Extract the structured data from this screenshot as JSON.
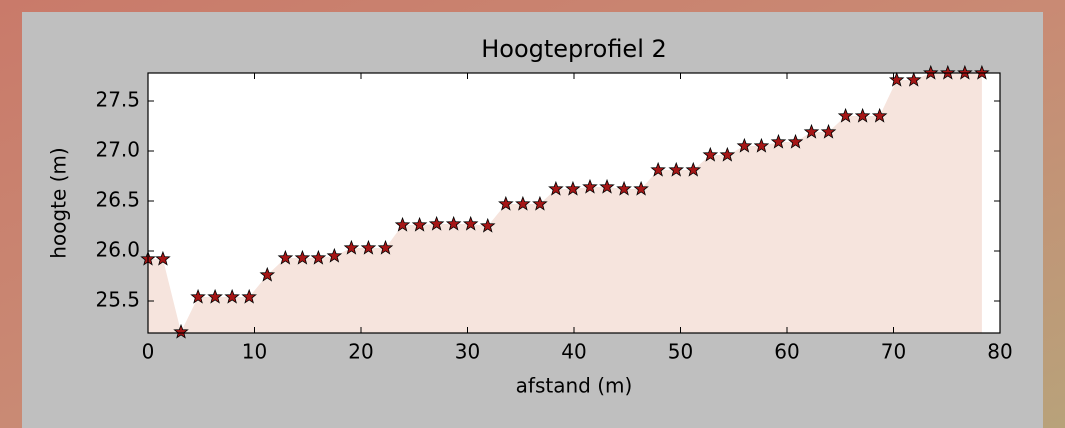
{
  "chart_data": {
    "type": "scatter",
    "title": "Hoogteprofiel 2",
    "x_label": "afstand (m)",
    "y_label": "hoogte (m)",
    "marker": "star",
    "color": "#a51616",
    "fill_color": "#f6e4dd",
    "x": [
      0,
      1.4,
      3.1,
      4.7,
      6.3,
      7.9,
      9.5,
      11.2,
      12.9,
      14.5,
      16.0,
      17.5,
      19.1,
      20.7,
      22.3,
      23.9,
      25.5,
      27.1,
      28.7,
      30.3,
      31.9,
      33.6,
      35.2,
      36.8,
      38.3,
      39.9,
      41.5,
      43.1,
      44.7,
      46.3,
      47.9,
      49.6,
      51.2,
      52.8,
      54.4,
      56.0,
      57.6,
      59.2,
      60.8,
      62.3,
      63.9,
      65.5,
      67.1,
      68.7,
      70.3,
      71.9,
      73.5,
      75.1,
      76.7,
      78.3
    ],
    "values": [
      25.92,
      25.92,
      25.19,
      25.54,
      25.54,
      25.54,
      25.54,
      25.76,
      25.93,
      25.93,
      25.93,
      25.95,
      26.03,
      26.03,
      26.03,
      26.26,
      26.26,
      26.27,
      26.27,
      26.27,
      26.25,
      26.47,
      26.47,
      26.47,
      26.62,
      26.62,
      26.64,
      26.64,
      26.62,
      26.62,
      26.81,
      26.81,
      26.81,
      26.96,
      26.96,
      27.05,
      27.05,
      27.09,
      27.09,
      27.19,
      27.19,
      27.35,
      27.35,
      27.35,
      27.71,
      27.71,
      27.78,
      27.78,
      27.78,
      27.78
    ],
    "xlim": [
      0,
      80
    ],
    "xticks": [
      0,
      10,
      20,
      30,
      40,
      50,
      60,
      70,
      80
    ],
    "ylim": [
      25.18,
      27.78
    ],
    "yticks": [
      25.5,
      {
        "value": 26,
        "label": "26.0"
      },
      26.5,
      {
        "value": 27,
        "label": "27.0"
      },
      27.5
    ]
  }
}
